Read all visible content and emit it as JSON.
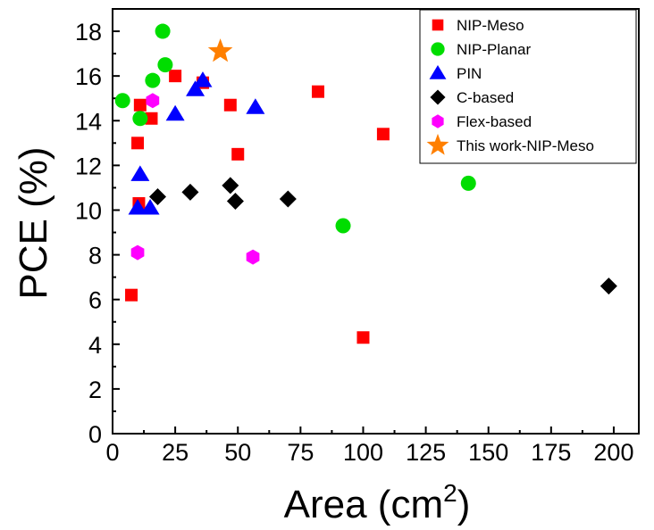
{
  "chart_data": {
    "type": "scatter",
    "xlabel": "Area (cm",
    "xlabel_sup": "2",
    "xlabel_close": ")",
    "ylabel": "PCE (%)",
    "xlim": [
      0,
      210
    ],
    "ylim": [
      0,
      19
    ],
    "xticks": [
      0,
      25,
      50,
      75,
      100,
      125,
      150,
      175,
      200
    ],
    "xtick_labels": [
      "0",
      "25",
      "50",
      "75",
      "100",
      "125",
      "150",
      "175",
      "200"
    ],
    "yticks": [
      0,
      2,
      4,
      6,
      8,
      10,
      12,
      14,
      16,
      18
    ],
    "ytick_labels": [
      "0",
      "2",
      "4",
      "6",
      "8",
      "10",
      "12",
      "14",
      "16",
      "18"
    ],
    "grid": false,
    "legend_position": "top-right",
    "series": [
      {
        "name": "NIP-Meso",
        "marker": "square",
        "color": "#ff0000",
        "points": [
          [
            7.5,
            6.2
          ],
          [
            10,
            13
          ],
          [
            10.5,
            10.3
          ],
          [
            11,
            14.7
          ],
          [
            15.5,
            14.1
          ],
          [
            25,
            16
          ],
          [
            36,
            15.7
          ],
          [
            47,
            14.7
          ],
          [
            50,
            12.5
          ],
          [
            82,
            15.3
          ],
          [
            100,
            4.3
          ],
          [
            108,
            13.4
          ]
        ]
      },
      {
        "name": "NIP-Planar",
        "marker": "circle",
        "color": "#00dd00",
        "points": [
          [
            4,
            14.9
          ],
          [
            11,
            14.1
          ],
          [
            16,
            15.8
          ],
          [
            20,
            18
          ],
          [
            21,
            16.5
          ],
          [
            92,
            9.3
          ],
          [
            142,
            11.2
          ]
        ]
      },
      {
        "name": "PIN",
        "marker": "triangle",
        "color": "#0000ff",
        "points": [
          [
            10,
            10.1
          ],
          [
            11,
            11.6
          ],
          [
            15,
            10.1
          ],
          [
            25,
            14.3
          ],
          [
            33,
            15.4
          ],
          [
            36,
            15.8
          ],
          [
            57,
            14.6
          ]
        ]
      },
      {
        "name": "C-based",
        "marker": "diamond",
        "color": "#000000",
        "points": [
          [
            18,
            10.6
          ],
          [
            31,
            10.8
          ],
          [
            47,
            11.1
          ],
          [
            49,
            10.4
          ],
          [
            70,
            10.5
          ],
          [
            198,
            6.6
          ]
        ]
      },
      {
        "name": "Flex-based",
        "marker": "hexagon",
        "color": "#ff00ff",
        "points": [
          [
            10,
            8.1
          ],
          [
            16,
            14.9
          ],
          [
            56,
            7.9
          ]
        ]
      },
      {
        "name": "This work-NIP-Meso",
        "marker": "star",
        "color": "#ff7f00",
        "points": [
          [
            43,
            17.1
          ]
        ]
      }
    ]
  }
}
